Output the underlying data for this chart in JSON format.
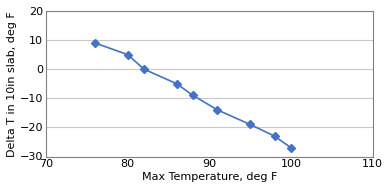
{
  "x": [
    76,
    80,
    82,
    86,
    88,
    91,
    95,
    98,
    100
  ],
  "y": [
    9,
    5,
    0,
    -5,
    -9,
    -14,
    -19,
    -23,
    -27
  ],
  "line_color": "#4472C4",
  "marker": "D",
  "markersize": 4,
  "linewidth": 1.2,
  "xlabel": "Max Temperature, deg F",
  "ylabel": "Delta T in 10in slab, deg F",
  "xlim": [
    70,
    110
  ],
  "ylim": [
    -30,
    20
  ],
  "xticks": [
    70,
    80,
    90,
    100,
    110
  ],
  "yticks": [
    -30,
    -20,
    -10,
    0,
    10,
    20
  ],
  "grid_color": "#c8c8c8",
  "background_color": "#ffffff",
  "xlabel_fontsize": 8,
  "ylabel_fontsize": 8,
  "tick_fontsize": 8,
  "spine_color": "#808080",
  "spine_linewidth": 0.8
}
